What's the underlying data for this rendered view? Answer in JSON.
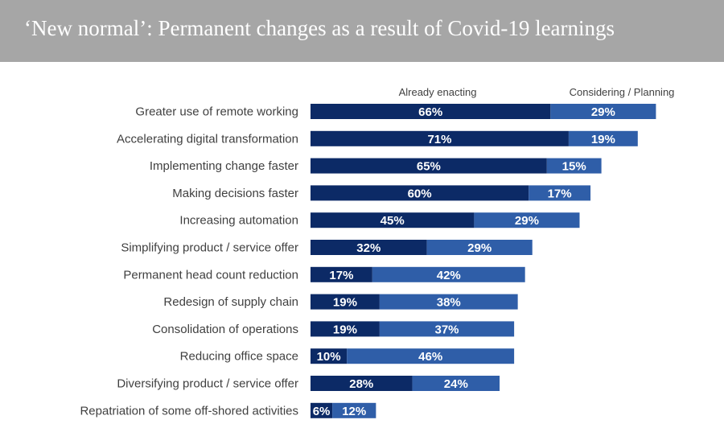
{
  "header": {
    "title": "‘New normal’:  Permanent changes as a result of Covid-19 learnings"
  },
  "colors": {
    "header_bg": "#a6a6a6",
    "already": "#0c2a66",
    "considering": "#2f5ea8",
    "label": "#404040"
  },
  "chart_data": {
    "type": "bar",
    "orientation": "horizontal",
    "stacked": true,
    "title": "‘New normal’:  Permanent changes as a result of Covid-19 learnings",
    "legend": [
      "Already enacting",
      "Considering / Planning"
    ],
    "legend_position": "top",
    "categories": [
      "Greater use of remote working",
      "Accelerating digital transformation",
      "Implementing change faster",
      "Making decisions faster",
      "Increasing automation",
      "Simplifying product / service offer",
      "Permanent head count reduction",
      "Redesign of supply chain",
      "Consolidation of operations",
      "Reducing office space",
      "Diversifying product / service offer",
      "Repatriation of some off-shored activities"
    ],
    "series": [
      {
        "name": "Already enacting",
        "values": [
          66,
          71,
          65,
          60,
          45,
          32,
          17,
          19,
          19,
          10,
          28,
          6
        ]
      },
      {
        "name": "Considering / Planning",
        "values": [
          29,
          19,
          15,
          17,
          29,
          29,
          42,
          38,
          37,
          46,
          24,
          12
        ]
      }
    ],
    "value_suffix": "%",
    "xlim": [
      0,
      100
    ],
    "grid": false
  }
}
